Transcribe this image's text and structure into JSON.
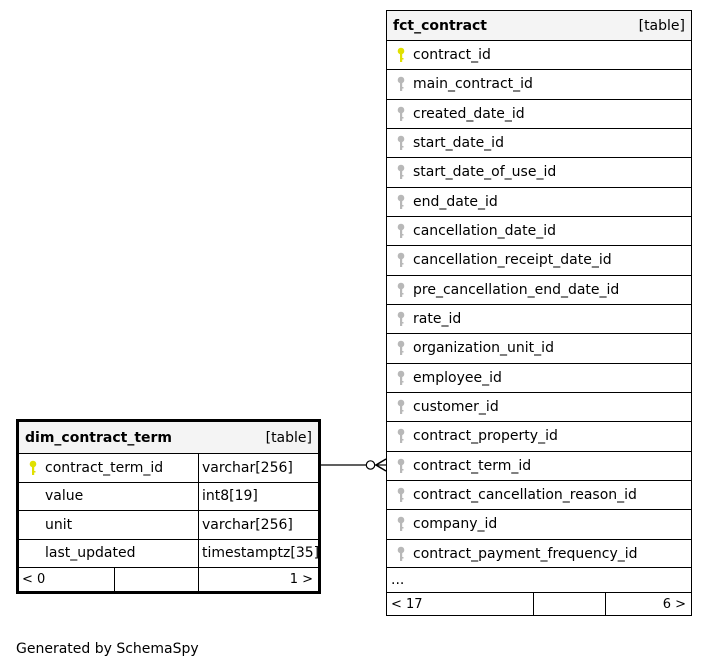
{
  "fct_contract": {
    "name": "fct_contract",
    "kind": "[table]",
    "columns": [
      {
        "name": "contract_id",
        "key": "primary"
      },
      {
        "name": "main_contract_id",
        "key": "foreign"
      },
      {
        "name": "created_date_id",
        "key": "foreign"
      },
      {
        "name": "start_date_id",
        "key": "foreign"
      },
      {
        "name": "start_date_of_use_id",
        "key": "foreign"
      },
      {
        "name": "end_date_id",
        "key": "foreign"
      },
      {
        "name": "cancellation_date_id",
        "key": "foreign"
      },
      {
        "name": "cancellation_receipt_date_id",
        "key": "foreign"
      },
      {
        "name": "pre_cancellation_end_date_id",
        "key": "foreign"
      },
      {
        "name": "rate_id",
        "key": "foreign"
      },
      {
        "name": "organization_unit_id",
        "key": "foreign"
      },
      {
        "name": "employee_id",
        "key": "foreign"
      },
      {
        "name": "customer_id",
        "key": "foreign"
      },
      {
        "name": "contract_property_id",
        "key": "foreign"
      },
      {
        "name": "contract_term_id",
        "key": "foreign"
      },
      {
        "name": "contract_cancellation_reason_id",
        "key": "foreign"
      },
      {
        "name": "company_id",
        "key": "foreign"
      },
      {
        "name": "contract_payment_frequency_id",
        "key": "foreign"
      }
    ],
    "more": "...",
    "parents": "< 17",
    "children": "6 >"
  },
  "dim_contract_term": {
    "name": "dim_contract_term",
    "kind": "[table]",
    "columns": [
      {
        "name": "contract_term_id",
        "type": "varchar[256]",
        "key": "primary"
      },
      {
        "name": "value",
        "type": "int8[19]",
        "key": "none"
      },
      {
        "name": "unit",
        "type": "varchar[256]",
        "key": "none"
      },
      {
        "name": "last_updated",
        "type": "timestamptz[35]",
        "key": "none"
      }
    ],
    "parents": "< 0",
    "children": "1 >"
  },
  "footer": "Generated by SchemaSpy",
  "colors": {
    "primary_key": "#e0e000",
    "foreign_key": "#b8b8b8",
    "header_bg": "#f4f4f4"
  }
}
